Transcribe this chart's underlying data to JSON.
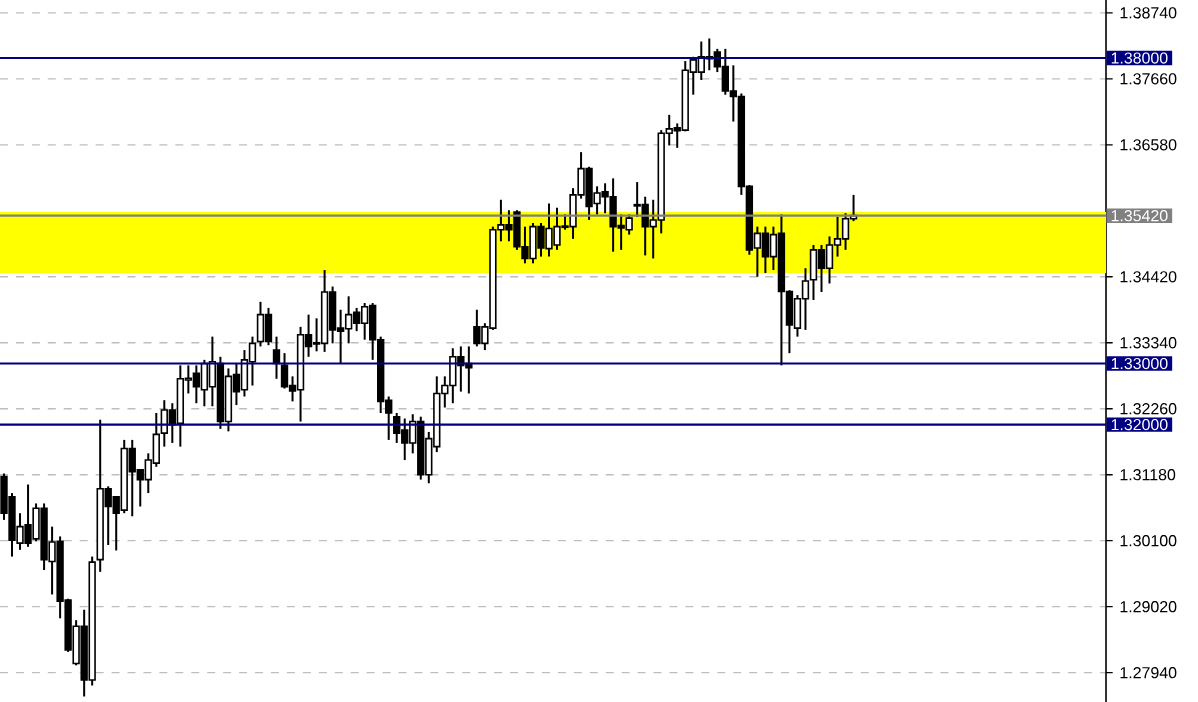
{
  "chart_data": {
    "type": "candlestick",
    "categories": [
      null,
      null,
      null,
      null,
      null,
      null,
      null,
      null,
      null,
      null,
      null,
      null,
      null,
      null,
      null,
      null,
      null,
      null,
      null,
      null,
      null,
      null,
      null,
      null,
      null,
      null,
      null,
      null,
      null,
      null,
      null,
      null,
      null,
      null,
      null,
      null,
      null,
      null,
      null,
      null,
      null,
      null,
      null,
      null,
      null,
      null,
      null,
      null,
      null,
      null,
      null,
      null,
      null,
      null,
      null,
      null,
      null,
      null,
      null,
      null,
      null,
      null,
      null,
      null,
      null,
      null,
      null,
      null,
      null,
      null,
      null,
      null,
      null,
      null,
      null,
      null,
      null,
      null,
      null,
      null,
      null,
      null,
      null,
      null,
      null,
      null,
      null,
      null,
      null,
      null,
      null,
      null,
      null,
      null,
      null,
      null,
      null,
      null,
      null,
      null,
      null,
      null,
      null,
      null,
      null,
      null,
      null,
      null,
      null,
      null,
      null,
      null,
      null,
      null,
      null,
      null,
      null,
      null,
      null,
      null,
      null,
      null,
      null,
      null,
      null,
      null,
      null,
      null,
      null,
      null,
      null,
      null,
      null,
      null,
      null,
      null,
      null,
      null
    ],
    "ohlc": [
      [
        1.3115,
        1.312,
        1.3044,
        1.3055
      ],
      [
        1.3082,
        1.3088,
        1.2984,
        1.3011
      ],
      [
        1.3006,
        1.3055,
        1.2995,
        1.3033
      ],
      [
        1.3036,
        1.3102,
        1.3,
        1.3006
      ],
      [
        1.3013,
        1.3071,
        1.3009,
        1.3063
      ],
      [
        1.3063,
        1.3071,
        1.2962,
        1.2979
      ],
      [
        1.2976,
        1.3033,
        1.2922,
        1.3008
      ],
      [
        1.3009,
        1.3017,
        1.2883,
        1.2911
      ],
      [
        1.2913,
        1.2915,
        1.2828,
        1.2831
      ],
      [
        1.2809,
        1.288,
        1.2806,
        1.287
      ],
      [
        1.287,
        1.2897,
        1.2755,
        1.2782
      ],
      [
        1.2782,
        1.2984,
        1.2773,
        1.2975
      ],
      [
        1.2979,
        1.3208,
        1.2959,
        1.3095
      ],
      [
        1.3095,
        1.3099,
        1.3003,
        1.3066
      ],
      [
        1.3082,
        1.3082,
        1.2994,
        1.3055
      ],
      [
        1.306,
        1.3175,
        1.3055,
        1.3161
      ],
      [
        1.3161,
        1.3175,
        1.305,
        1.3123
      ],
      [
        1.3126,
        1.3126,
        1.3066,
        1.311
      ],
      [
        1.311,
        1.3153,
        1.3088,
        1.3142
      ],
      [
        1.3137,
        1.3219,
        1.3131,
        1.3184
      ],
      [
        1.3186,
        1.324,
        1.3164,
        1.3224
      ],
      [
        1.3224,
        1.3235,
        1.317,
        1.32
      ],
      [
        1.3202,
        1.3297,
        1.3164,
        1.3275
      ],
      [
        1.3273,
        1.3297,
        1.3251,
        1.3276
      ],
      [
        1.3284,
        1.3297,
        1.3235,
        1.3262
      ],
      [
        1.3257,
        1.3306,
        1.323,
        1.33
      ],
      [
        1.3262,
        1.3344,
        1.323,
        1.3303
      ],
      [
        1.33,
        1.3311,
        1.3193,
        1.3205
      ],
      [
        1.3205,
        1.3292,
        1.3189,
        1.3279
      ],
      [
        1.3282,
        1.33,
        1.3232,
        1.3254
      ],
      [
        1.3257,
        1.3322,
        1.3246,
        1.3306
      ],
      [
        1.3303,
        1.3344,
        1.3264,
        1.3333
      ],
      [
        1.3336,
        1.3401,
        1.3328,
        1.338
      ],
      [
        1.338,
        1.3391,
        1.333,
        1.3336
      ],
      [
        1.3322,
        1.3344,
        1.3275,
        1.33
      ],
      [
        1.3297,
        1.3317,
        1.3259,
        1.3262
      ],
      [
        1.3264,
        1.3279,
        1.3238,
        1.3255
      ],
      [
        1.3257,
        1.336,
        1.3205,
        1.3347
      ],
      [
        1.3347,
        1.338,
        1.3311,
        1.3328
      ],
      [
        1.3332,
        1.3374,
        1.332,
        1.3334
      ],
      [
        1.3333,
        1.3453,
        1.3319,
        1.3417
      ],
      [
        1.3417,
        1.3426,
        1.3333,
        1.3355
      ],
      [
        1.3358,
        1.3388,
        1.33,
        1.3353
      ],
      [
        1.3357,
        1.341,
        1.3333,
        1.338
      ],
      [
        1.3384,
        1.3391,
        1.3353,
        1.3366
      ],
      [
        1.3366,
        1.3399,
        1.3339,
        1.3393
      ],
      [
        1.3395,
        1.3399,
        1.3306,
        1.3339
      ],
      [
        1.3339,
        1.3344,
        1.3219,
        1.3238
      ],
      [
        1.324,
        1.3246,
        1.3175,
        1.3219
      ],
      [
        1.3213,
        1.3219,
        1.317,
        1.3186
      ],
      [
        1.3191,
        1.321,
        1.3142,
        1.317
      ],
      [
        1.317,
        1.3217,
        1.3153,
        1.3205
      ],
      [
        1.3205,
        1.3213,
        1.311,
        1.3118
      ],
      [
        1.3118,
        1.3188,
        1.3104,
        1.3177
      ],
      [
        1.3164,
        1.3279,
        1.3155,
        1.3251
      ],
      [
        1.3251,
        1.3279,
        1.3228,
        1.3264
      ],
      [
        1.3264,
        1.3325,
        1.3235,
        1.3311
      ],
      [
        1.3311,
        1.3328,
        1.3254,
        1.3297
      ],
      [
        1.33,
        1.3328,
        1.3251,
        1.3293
      ],
      [
        1.336,
        1.3388,
        1.3328,
        1.3333
      ],
      [
        1.3333,
        1.3366,
        1.3322,
        1.336
      ],
      [
        1.3358,
        1.3524,
        1.3355,
        1.3519
      ],
      [
        1.3519,
        1.3568,
        1.35,
        1.3527
      ],
      [
        1.3527,
        1.3551,
        1.35,
        1.3519
      ],
      [
        1.3548,
        1.3551,
        1.3486,
        1.3491
      ],
      [
        1.3491,
        1.3524,
        1.3464,
        1.3472
      ],
      [
        1.3472,
        1.353,
        1.3464,
        1.3524
      ],
      [
        1.3524,
        1.353,
        1.3475,
        1.3489
      ],
      [
        1.3488,
        1.3562,
        1.3475,
        1.3521
      ],
      [
        1.3494,
        1.3555,
        1.3486,
        1.3524
      ],
      [
        1.3523,
        1.3544,
        1.3519,
        1.3525
      ],
      [
        1.3524,
        1.3587,
        1.3504,
        1.3576
      ],
      [
        1.3576,
        1.3646,
        1.357,
        1.3619
      ],
      [
        1.3619,
        1.3622,
        1.3535,
        1.3557
      ],
      [
        1.3562,
        1.359,
        1.3544,
        1.3579
      ],
      [
        1.3581,
        1.3595,
        1.3546,
        1.3573
      ],
      [
        1.3573,
        1.3603,
        1.3483,
        1.3524
      ],
      [
        1.3526,
        1.3544,
        1.3486,
        1.3522
      ],
      [
        1.3519,
        1.3544,
        1.3511,
        1.3538
      ],
      [
        1.3558,
        1.3597,
        1.354,
        1.356
      ],
      [
        1.356,
        1.3573,
        1.3477,
        1.3524
      ],
      [
        1.3524,
        1.3568,
        1.3472,
        1.3535
      ],
      [
        1.3535,
        1.3682,
        1.3513,
        1.3677
      ],
      [
        1.3677,
        1.3707,
        1.3657,
        1.3684
      ],
      [
        1.3686,
        1.3693,
        1.3653,
        1.3681
      ],
      [
        1.3682,
        1.3795,
        1.368,
        1.378
      ],
      [
        1.3777,
        1.3802,
        1.374,
        1.3797
      ],
      [
        1.3777,
        1.3827,
        1.3764,
        1.3802
      ],
      [
        1.3802,
        1.3832,
        1.378,
        1.3799
      ],
      [
        1.381,
        1.3815,
        1.3777,
        1.3786
      ],
      [
        1.3786,
        1.3815,
        1.374,
        1.3746
      ],
      [
        1.3746,
        1.3788,
        1.3696,
        1.3737
      ],
      [
        1.3737,
        1.3742,
        1.3576,
        1.359
      ],
      [
        1.359,
        1.3592,
        1.3478,
        1.3486
      ],
      [
        1.3489,
        1.3524,
        1.3442,
        1.3513
      ],
      [
        1.3513,
        1.3524,
        1.3448,
        1.3475
      ],
      [
        1.3475,
        1.3524,
        1.3453,
        1.3511
      ],
      [
        1.3513,
        1.3544,
        1.3297,
        1.3418
      ],
      [
        1.3418,
        1.342,
        1.3317,
        1.3363
      ],
      [
        1.3358,
        1.3412,
        1.3344,
        1.3406
      ],
      [
        1.3406,
        1.3456,
        1.3355,
        1.3435
      ],
      [
        1.3437,
        1.3494,
        1.3404,
        1.3486
      ],
      [
        1.3486,
        1.3494,
        1.3417,
        1.3456
      ],
      [
        1.3456,
        1.3508,
        1.3431,
        1.3494
      ],
      [
        1.3494,
        1.354,
        1.3475,
        1.3504
      ],
      [
        1.3504,
        1.3546,
        1.3486,
        1.3537
      ],
      [
        1.3537,
        1.3576,
        1.3533,
        1.3542
      ],
      null,
      null,
      null,
      null,
      null,
      null,
      null,
      null,
      null,
      null,
      null,
      null,
      null,
      null,
      null,
      null,
      null,
      null,
      null,
      null,
      null,
      null,
      null,
      null,
      null,
      null,
      null,
      null,
      null,
      null,
      null
    ],
    "ylim": [
      1.2746,
      1.3895
    ],
    "yticks": [
      {
        "value": 1.3874,
        "label": "1.38740"
      },
      {
        "value": 1.3766,
        "label": "1.37660"
      },
      {
        "value": 1.3658,
        "label": "1.36580"
      },
      {
        "value": 1.3442,
        "label": "1.34420"
      },
      {
        "value": 1.3334,
        "label": "1.33340"
      },
      {
        "value": 1.3226,
        "label": "1.32260"
      },
      {
        "value": 1.3118,
        "label": "1.31180"
      },
      {
        "value": 1.301,
        "label": "1.30100"
      },
      {
        "value": 1.2902,
        "label": "1.29020"
      },
      {
        "value": 1.2794,
        "label": "1.27940"
      }
    ],
    "ref_lines": [
      {
        "axis": "y",
        "value": 1.38,
        "label": "1.38000",
        "color": "#000080"
      },
      {
        "axis": "y",
        "value": 1.3542,
        "label": "1.35420",
        "color": "#808080"
      },
      {
        "axis": "y",
        "value": 1.33,
        "label": "1.33000",
        "color": "#000080"
      },
      {
        "axis": "y",
        "value": 1.32,
        "label": "1.32000",
        "color": "#000080"
      }
    ],
    "bands": [
      {
        "axis": "y",
        "from": 1.3448,
        "to": 1.3548,
        "color": "#ffff00"
      }
    ],
    "grid": true,
    "tick_labels": "y"
  }
}
